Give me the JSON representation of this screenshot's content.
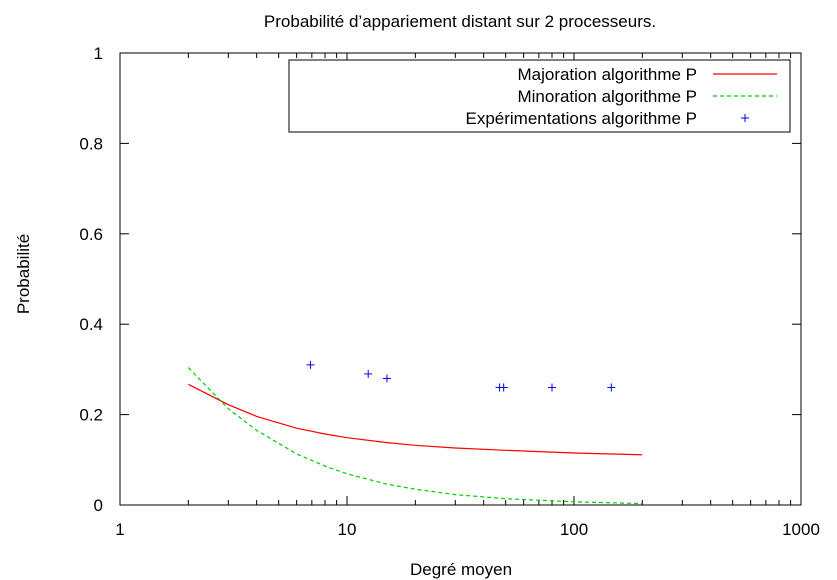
{
  "chart_data": {
    "type": "line",
    "title": "Probabilité d’appariement distant sur 2 processeurs.",
    "xlabel": "Degré moyen",
    "ylabel": "Probabilité",
    "xscale": "log",
    "xlim": [
      1,
      1000
    ],
    "ylim": [
      0,
      1
    ],
    "xticks": [
      1,
      10,
      100,
      1000
    ],
    "xtick_labels": [
      "1",
      "10",
      "100",
      "1000"
    ],
    "yticks": [
      0,
      0.2,
      0.4,
      0.6,
      0.8,
      1
    ],
    "ytick_labels": [
      "0",
      "0.2",
      "0.4",
      "0.6",
      "0.8",
      "1"
    ],
    "grid": false,
    "legend_position": "top-right",
    "series": [
      {
        "name": "Majoration algorithme P",
        "kind": "line",
        "style": "solid",
        "color": "#ff0000",
        "x": [
          2,
          3,
          4,
          6,
          8,
          10,
          15,
          20,
          30,
          50,
          100,
          200
        ],
        "y": [
          0.267,
          0.222,
          0.196,
          0.17,
          0.157,
          0.149,
          0.138,
          0.132,
          0.126,
          0.121,
          0.115,
          0.111
        ]
      },
      {
        "name": "Minoration algorithme P",
        "kind": "line",
        "style": "dashed",
        "color": "#00cc00",
        "x": [
          2,
          3,
          4,
          6,
          8,
          10,
          15,
          20,
          30,
          50,
          100,
          200
        ],
        "y": [
          0.304,
          0.213,
          0.165,
          0.113,
          0.086,
          0.069,
          0.046,
          0.035,
          0.023,
          0.014,
          0.007,
          0.003
        ]
      },
      {
        "name": "Expérimentations algorithme P",
        "kind": "points",
        "marker": "+",
        "color": "#0000ff",
        "x": [
          6.9,
          12.4,
          15,
          47,
          49,
          80,
          146
        ],
        "y": [
          0.31,
          0.29,
          0.28,
          0.26,
          0.26,
          0.26,
          0.26
        ]
      }
    ]
  }
}
